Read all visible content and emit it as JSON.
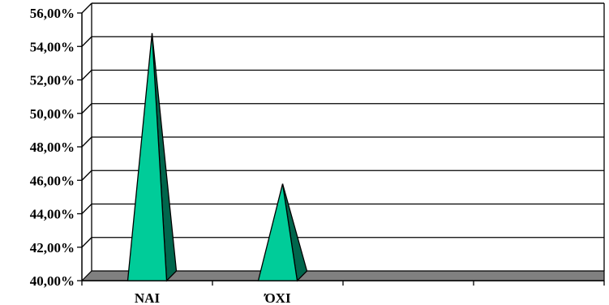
{
  "chart_data": {
    "type": "bar",
    "subtype": "3d-pyramid",
    "categories": [
      "NAI",
      "ΌΧΙ",
      "",
      ""
    ],
    "values": [
      54.5,
      45.5,
      null,
      null
    ],
    "title": "",
    "xlabel": "",
    "ylabel": "",
    "ylim": [
      40,
      56
    ],
    "y_ticks": [
      "40,00%",
      "42,00%",
      "44,00%",
      "46,00%",
      "48,00%",
      "50,00%",
      "52,00%",
      "54,00%",
      "56,00%"
    ],
    "grid": true,
    "legend": "none",
    "colors": {
      "front": "#00CC99",
      "side": "#00664C",
      "floor": "#808080",
      "outline": "#000000"
    }
  }
}
